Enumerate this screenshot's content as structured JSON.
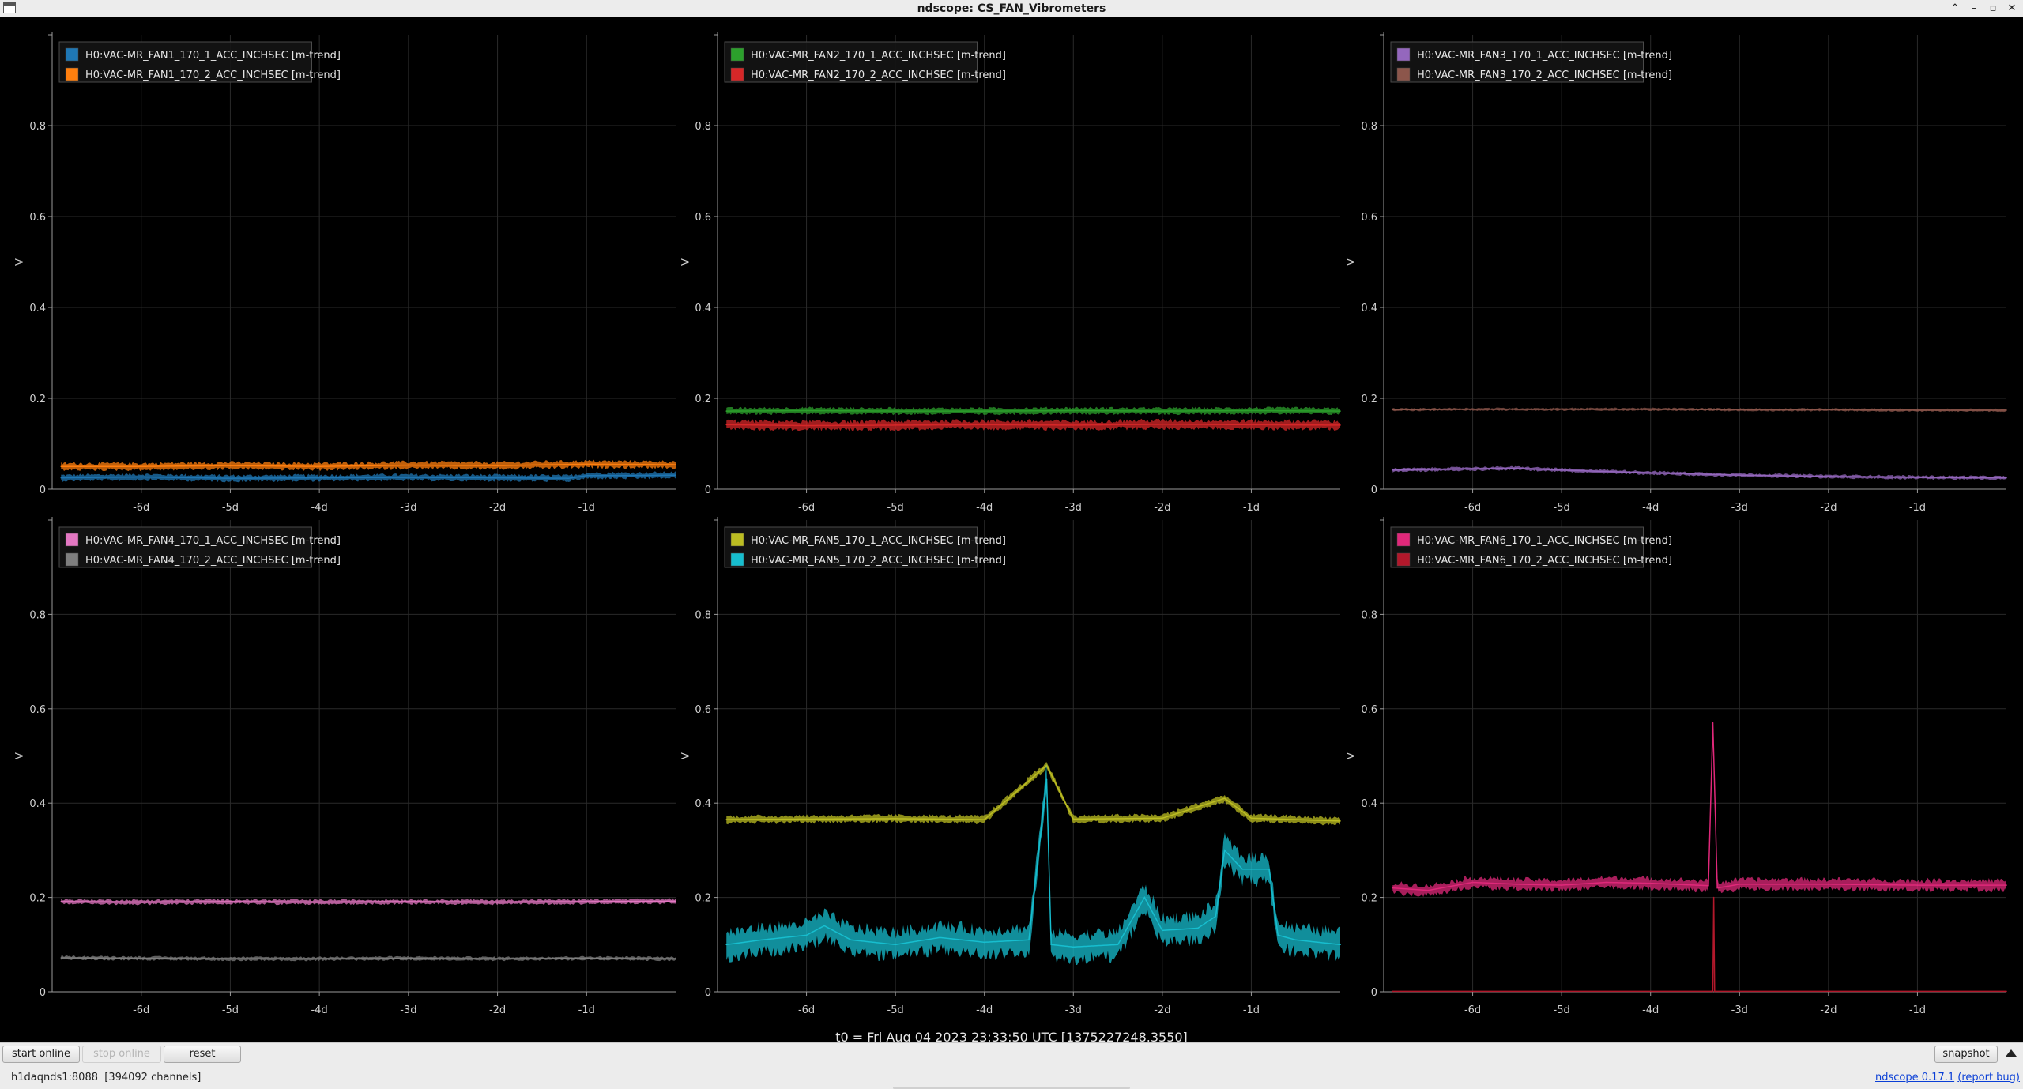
{
  "window": {
    "title": "ndscope: CS_FAN_Vibrometers"
  },
  "t0_label": "t0 = Fri Aug 04 2023 23:33:50 UTC [1375227248.3550]",
  "controls": {
    "start_online": "start online",
    "stop_online": "stop online",
    "reset": "reset",
    "snapshot": "snapshot"
  },
  "status": {
    "server": "h1daqnds1:8088  [394092 channels]",
    "version_link": "ndscope 0.17.1",
    "bug_link": "(report bug)"
  },
  "chart_data": [
    {
      "type": "line",
      "ylabel": "V",
      "xlabel": "",
      "ylim": [
        0,
        1
      ],
      "xlim": [
        -7,
        0
      ],
      "x_ticks": [
        "-6d",
        "-5d",
        "-4d",
        "-3d",
        "-2d",
        "-1d"
      ],
      "y_ticks": [
        "0",
        "0.2",
        "0.4",
        "0.6",
        "0.8"
      ],
      "grid": true,
      "legend_position": "top-left",
      "series": [
        {
          "name": "H0:VAC-MR_FAN1_170_1_ACC_INCHSEC [m-trend]",
          "color": "#1f77b4",
          "x": [
            -6.9,
            -6,
            -5,
            -4,
            -3,
            -2,
            -1.2,
            -1,
            -0.5,
            0
          ],
          "y": [
            0.025,
            0.027,
            0.024,
            0.025,
            0.026,
            0.025,
            0.024,
            0.03,
            0.03,
            0.031
          ],
          "band": 0.007
        },
        {
          "name": "H0:VAC-MR_FAN1_170_2_ACC_INCHSEC [m-trend]",
          "color": "#ff7f0e",
          "x": [
            -6.9,
            -6,
            -5,
            -4,
            -3,
            -2,
            -1,
            0
          ],
          "y": [
            0.05,
            0.05,
            0.052,
            0.05,
            0.053,
            0.052,
            0.055,
            0.054
          ],
          "band": 0.008
        }
      ]
    },
    {
      "type": "line",
      "ylabel": "V",
      "xlabel": "",
      "ylim": [
        0,
        1
      ],
      "xlim": [
        -7,
        0
      ],
      "x_ticks": [
        "-6d",
        "-5d",
        "-4d",
        "-3d",
        "-2d",
        "-1d"
      ],
      "y_ticks": [
        "0",
        "0.2",
        "0.4",
        "0.6",
        "0.8"
      ],
      "grid": true,
      "legend_position": "top-left",
      "series": [
        {
          "name": "H0:VAC-MR_FAN2_170_1_ACC_INCHSEC [m-trend]",
          "color": "#2ca02c",
          "x": [
            -6.9,
            -6,
            -5,
            -4,
            -3,
            -2,
            -1,
            0
          ],
          "y": [
            0.172,
            0.173,
            0.172,
            0.172,
            0.173,
            0.172,
            0.173,
            0.172
          ],
          "band": 0.007
        },
        {
          "name": "H0:VAC-MR_FAN2_170_2_ACC_INCHSEC [m-trend]",
          "color": "#d62728",
          "x": [
            -6.9,
            -6,
            -5,
            -4,
            -3,
            -2,
            -1,
            0
          ],
          "y": [
            0.142,
            0.14,
            0.141,
            0.142,
            0.141,
            0.143,
            0.142,
            0.141
          ],
          "band": 0.01
        }
      ]
    },
    {
      "type": "line",
      "ylabel": "V",
      "xlabel": "",
      "ylim": [
        0,
        1
      ],
      "xlim": [
        -7,
        0
      ],
      "x_ticks": [
        "-6d",
        "-5d",
        "-4d",
        "-3d",
        "-2d",
        "-1d"
      ],
      "y_ticks": [
        "0",
        "0.2",
        "0.4",
        "0.6",
        "0.8"
      ],
      "grid": true,
      "legend_position": "top-left",
      "series": [
        {
          "name": "H0:VAC-MR_FAN3_170_1_ACC_INCHSEC [m-trend]",
          "color": "#9467bd",
          "x": [
            -6.9,
            -6,
            -5.5,
            -5,
            -4,
            -3,
            -2,
            -1,
            0
          ],
          "y": [
            0.042,
            0.045,
            0.046,
            0.042,
            0.036,
            0.031,
            0.028,
            0.026,
            0.025
          ],
          "band": 0.004
        },
        {
          "name": "H0:VAC-MR_FAN3_170_2_ACC_INCHSEC [m-trend]",
          "color": "#8c564b",
          "x": [
            -6.9,
            -6,
            -5,
            -4,
            -3,
            -2,
            -1,
            0
          ],
          "y": [
            0.175,
            0.176,
            0.176,
            0.176,
            0.175,
            0.175,
            0.174,
            0.174
          ],
          "band": 0.003
        }
      ]
    },
    {
      "type": "line",
      "ylabel": "V",
      "xlabel": "",
      "ylim": [
        0,
        1
      ],
      "xlim": [
        -7,
        0
      ],
      "x_ticks": [
        "-6d",
        "-5d",
        "-4d",
        "-3d",
        "-2d",
        "-1d"
      ],
      "y_ticks": [
        "0",
        "0.2",
        "0.4",
        "0.6",
        "0.8"
      ],
      "grid": true,
      "legend_position": "top-left",
      "series": [
        {
          "name": "H0:VAC-MR_FAN4_170_1_ACC_INCHSEC [m-trend]",
          "color": "#e377c2",
          "x": [
            -6.9,
            -6,
            -5,
            -4,
            -3,
            -2,
            -1,
            0
          ],
          "y": [
            0.191,
            0.19,
            0.191,
            0.19,
            0.191,
            0.19,
            0.191,
            0.192
          ],
          "band": 0.005
        },
        {
          "name": "H0:VAC-MR_FAN4_170_2_ACC_INCHSEC [m-trend]",
          "color": "#7f7f7f",
          "x": [
            -6.9,
            -6,
            -5,
            -4,
            -3,
            -2,
            -1,
            0
          ],
          "y": [
            0.072,
            0.071,
            0.07,
            0.07,
            0.071,
            0.07,
            0.071,
            0.07
          ],
          "band": 0.004
        }
      ]
    },
    {
      "type": "line",
      "ylabel": "V",
      "xlabel": "",
      "ylim": [
        0,
        1
      ],
      "xlim": [
        -7,
        0
      ],
      "x_ticks": [
        "-6d",
        "-5d",
        "-4d",
        "-3d",
        "-2d",
        "-1d"
      ],
      "y_ticks": [
        "0",
        "0.2",
        "0.4",
        "0.6",
        "0.8"
      ],
      "grid": true,
      "legend_position": "top-left",
      "series": [
        {
          "name": "H0:VAC-MR_FAN5_170_1_ACC_INCHSEC [m-trend]",
          "color": "#bcbd22",
          "x": [
            -6.9,
            -6,
            -5,
            -4,
            -3.3,
            -3,
            -2,
            -1.3,
            -1,
            0
          ],
          "y": [
            0.365,
            0.366,
            0.367,
            0.365,
            0.48,
            0.366,
            0.368,
            0.41,
            0.368,
            0.362
          ],
          "band": 0.008
        },
        {
          "name": "H0:VAC-MR_FAN5_170_2_ACC_INCHSEC [m-trend]",
          "color": "#17becf",
          "x": [
            -6.9,
            -6.5,
            -6,
            -5.8,
            -5.5,
            -5,
            -4.5,
            -4,
            -3.5,
            -3.3,
            -3.25,
            -3,
            -2.5,
            -2.2,
            -2,
            -1.6,
            -1.4,
            -1.3,
            -1.1,
            -0.8,
            -0.7,
            -0.5,
            0
          ],
          "y": [
            0.1,
            0.11,
            0.12,
            0.14,
            0.11,
            0.1,
            0.115,
            0.105,
            0.11,
            0.45,
            0.1,
            0.095,
            0.1,
            0.2,
            0.13,
            0.135,
            0.16,
            0.3,
            0.26,
            0.26,
            0.12,
            0.11,
            0.1
          ],
          "band": 0.03
        }
      ]
    },
    {
      "type": "line",
      "ylabel": "V",
      "xlabel": "",
      "ylim": [
        0,
        1
      ],
      "xlim": [
        -7,
        0
      ],
      "x_ticks": [
        "-6d",
        "-5d",
        "-4d",
        "-3d",
        "-2d",
        "-1d"
      ],
      "y_ticks": [
        "0",
        "0.2",
        "0.4",
        "0.6",
        "0.8"
      ],
      "grid": true,
      "legend_position": "top-left",
      "series": [
        {
          "name": "H0:VAC-MR_FAN6_170_1_ACC_INCHSEC [m-trend]",
          "color": "#e0287a",
          "x": [
            -6.9,
            -6.5,
            -6,
            -5.5,
            -5,
            -4.5,
            -4,
            -3.35,
            -3.3,
            -3.25,
            -3,
            -2,
            -1,
            0
          ],
          "y": [
            0.22,
            0.215,
            0.232,
            0.228,
            0.226,
            0.232,
            0.23,
            0.225,
            0.57,
            0.22,
            0.228,
            0.228,
            0.226,
            0.226
          ],
          "band": 0.012
        },
        {
          "name": "H0:VAC-MR_FAN6_170_2_ACC_INCHSEC [m-trend]",
          "color": "#b2182b",
          "x": [
            -6.9,
            -3.3,
            -3.29,
            -3.28,
            0
          ],
          "y": [
            0.001,
            0.001,
            0.2,
            0.001,
            0.001
          ],
          "band": 0.0
        }
      ]
    }
  ]
}
